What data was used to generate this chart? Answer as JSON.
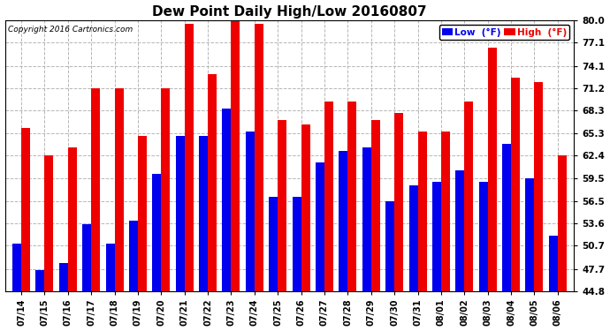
{
  "title": "Dew Point Daily High/Low 20160807",
  "copyright": "Copyright 2016 Cartronics.com",
  "dates": [
    "07/14",
    "07/15",
    "07/16",
    "07/17",
    "07/18",
    "07/19",
    "07/20",
    "07/21",
    "07/22",
    "07/23",
    "07/24",
    "07/25",
    "07/26",
    "07/27",
    "07/28",
    "07/29",
    "07/30",
    "07/31",
    "08/01",
    "08/02",
    "08/03",
    "08/04",
    "08/05",
    "08/06"
  ],
  "low_values": [
    51.0,
    47.5,
    48.5,
    53.5,
    51.0,
    54.0,
    60.0,
    65.0,
    65.0,
    68.5,
    65.5,
    57.0,
    57.0,
    61.5,
    63.0,
    63.5,
    56.5,
    58.5,
    59.0,
    60.5,
    59.0,
    64.0,
    59.5,
    52.0
  ],
  "high_values": [
    66.0,
    62.5,
    63.5,
    71.2,
    71.2,
    65.0,
    71.2,
    79.5,
    73.0,
    80.0,
    79.5,
    67.0,
    66.5,
    69.5,
    69.5,
    67.0,
    68.0,
    65.5,
    65.5,
    69.5,
    76.5,
    72.5,
    72.0,
    62.5
  ],
  "ylim": [
    44.8,
    80.0
  ],
  "yticks": [
    44.8,
    47.7,
    50.7,
    53.6,
    56.5,
    59.5,
    62.4,
    65.3,
    68.3,
    71.2,
    74.1,
    77.1,
    80.0
  ],
  "low_color": "#0000ee",
  "high_color": "#ee0000",
  "bg_color": "#ffffff",
  "plot_bg_color": "#ffffff",
  "grid_color": "#aaaaaa",
  "bar_width": 0.38,
  "legend_low_label": "Low  (°F)",
  "legend_high_label": "High  (°F)"
}
